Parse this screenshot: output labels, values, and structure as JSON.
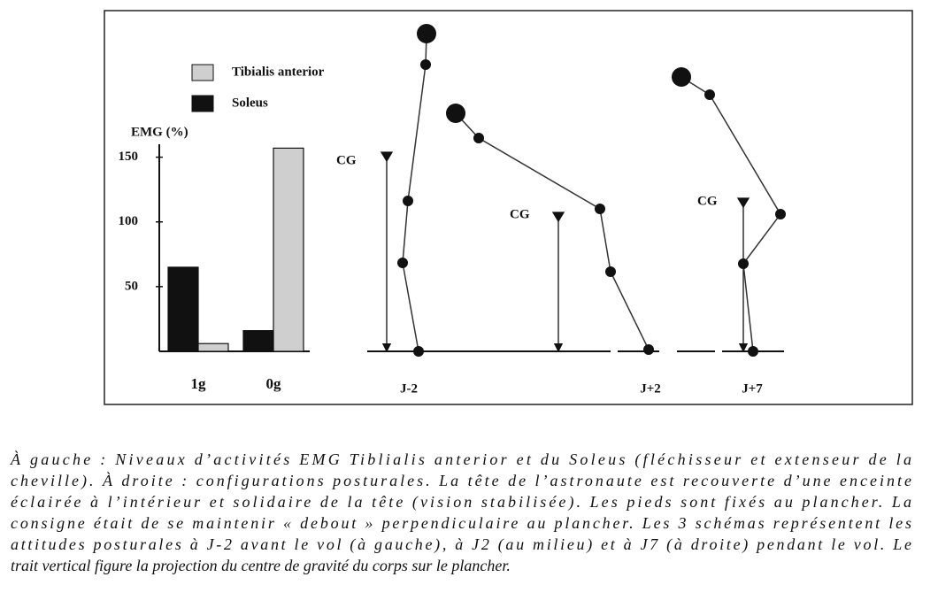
{
  "chart_data": {
    "type": "bar",
    "y_label": "EMG (%)",
    "categories": [
      "1g",
      "0g"
    ],
    "series": [
      {
        "name": "Tibialis anterior",
        "color": "#cfcfcf",
        "values": [
          6,
          157
        ]
      },
      {
        "name": "Soleus",
        "color": "#111111",
        "values": [
          65,
          16
        ]
      }
    ],
    "ylim": [
      0,
      160
    ],
    "yticks": [
      50,
      100,
      150
    ]
  },
  "postures": [
    {
      "label": "J-2",
      "marker": "CG"
    },
    {
      "label": "J+2",
      "marker": "CG"
    },
    {
      "label": "J+7",
      "marker": "CG"
    }
  ],
  "caption": [
    "À gauche : Niveaux d’activités EMG Tiblialis anterior et du Soleus (fléchisseur et extenseur de la",
    "cheville). À droite : configurations posturales. La tête de l’astronaute est recouverte d’une enceinte",
    "éclairée à l’intérieur et solidaire de la tête (vision stabilisée). Les pieds sont fixés au plancher. La",
    "consigne était de se maintenir « debout » perpendiculaire au plancher. Les 3 schémas représentent les",
    "attitudes posturales à J-2 avant le vol (à gauche), à J2 (au milieu) et à J7 (à droite) pendant le vol. Le",
    "trait vertical figure la projection du centre de gravité du corps sur le plancher."
  ]
}
